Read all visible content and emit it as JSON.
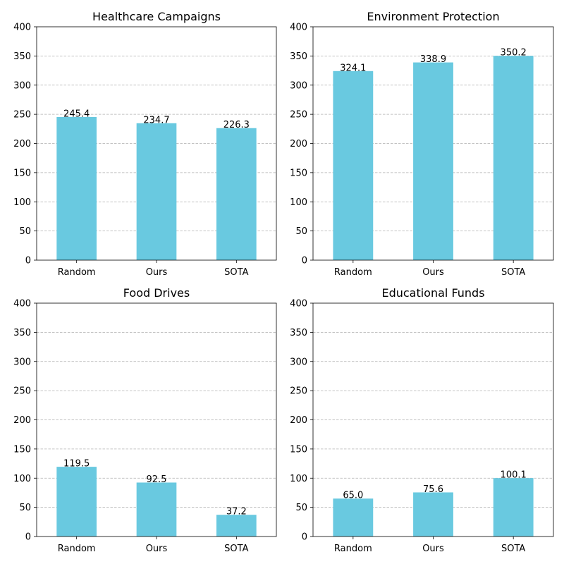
{
  "colors": {
    "bar": "#69c9e0",
    "grid": "#b0b0b0",
    "axis": "#000000",
    "background": "#ffffff"
  },
  "chart_data": [
    {
      "type": "bar",
      "title": "Healthcare Campaigns",
      "categories": [
        "Random",
        "Ours",
        "SOTA"
      ],
      "values": [
        245.4,
        234.7,
        226.3
      ],
      "data_labels": [
        "245.4",
        "234.7",
        "226.3"
      ],
      "ylim": [
        0,
        400
      ],
      "yticks": [
        "0",
        "50",
        "100",
        "150",
        "200",
        "250",
        "300",
        "350",
        "400"
      ],
      "grid": "y-dashed",
      "legend": "none"
    },
    {
      "type": "bar",
      "title": "Environment Protection",
      "categories": [
        "Random",
        "Ours",
        "SOTA"
      ],
      "values": [
        324.1,
        338.9,
        350.2
      ],
      "data_labels": [
        "324.1",
        "338.9",
        "350.2"
      ],
      "ylim": [
        0,
        400
      ],
      "yticks": [
        "0",
        "50",
        "100",
        "150",
        "200",
        "250",
        "300",
        "350",
        "400"
      ],
      "grid": "y-dashed",
      "legend": "none"
    },
    {
      "type": "bar",
      "title": "Food Drives",
      "categories": [
        "Random",
        "Ours",
        "SOTA"
      ],
      "values": [
        119.5,
        92.5,
        37.2
      ],
      "data_labels": [
        "119.5",
        "92.5",
        "37.2"
      ],
      "ylim": [
        0,
        400
      ],
      "yticks": [
        "0",
        "50",
        "100",
        "150",
        "200",
        "250",
        "300",
        "350",
        "400"
      ],
      "grid": "y-dashed",
      "legend": "none"
    },
    {
      "type": "bar",
      "title": "Educational Funds",
      "categories": [
        "Random",
        "Ours",
        "SOTA"
      ],
      "values": [
        65.0,
        75.6,
        100.1
      ],
      "data_labels": [
        "65.0",
        "75.6",
        "100.1"
      ],
      "ylim": [
        0,
        400
      ],
      "yticks": [
        "0",
        "50",
        "100",
        "150",
        "200",
        "250",
        "300",
        "350",
        "400"
      ],
      "grid": "y-dashed",
      "legend": "none"
    }
  ]
}
